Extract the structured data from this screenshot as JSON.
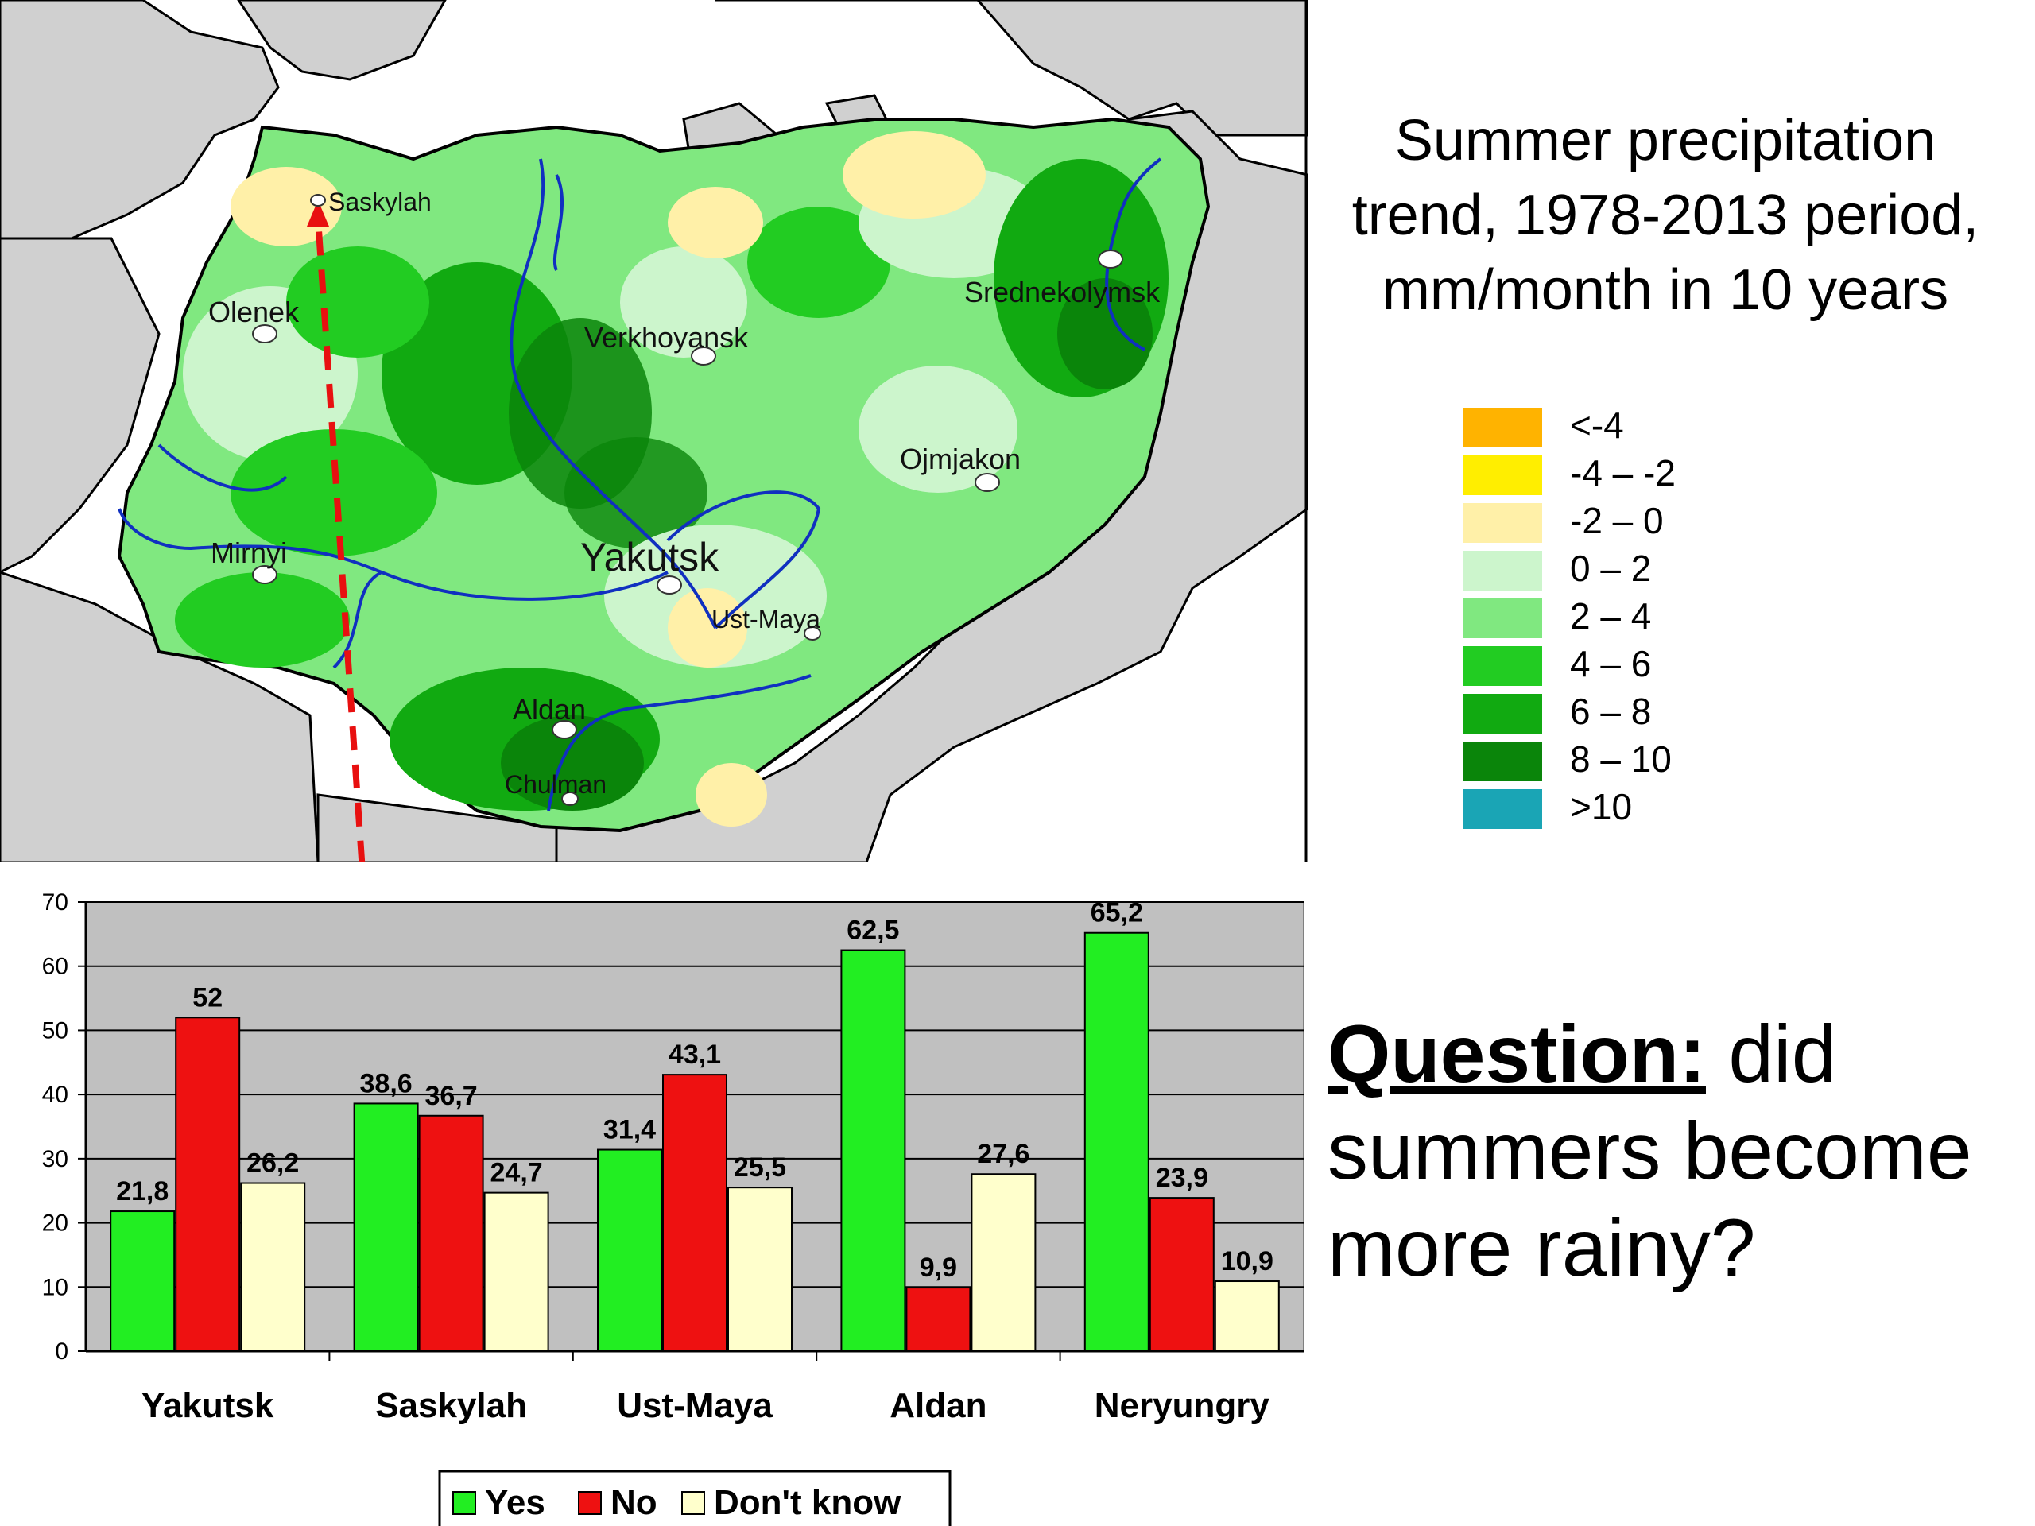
{
  "map": {
    "title_lines": [
      "Summer precipitation",
      "trend, 1978-2013 period,",
      "mm/month in 10 years"
    ],
    "cities": {
      "saskylah": "Saskylah",
      "olenek": "Olenek",
      "verkhoyansk": "Verkhoyansk",
      "srednekolymsk": "Srednekolymsk",
      "ojmjakon": "Ojmjakon",
      "mirnyi": "Mirnyi",
      "yakutsk": "Yakutsk",
      "ust_maya": "Ust-Maya",
      "aldan": "Aldan",
      "chulman": "Chulman"
    },
    "legend": [
      {
        "label": "<-4",
        "color": "#FFB300"
      },
      {
        "label": "-4 – -2",
        "color": "#FFEE00"
      },
      {
        "label": "-2 – 0",
        "color": "#FFF0A8"
      },
      {
        "label": "0 – 2",
        "color": "#CCF5CC"
      },
      {
        "label": "2 – 4",
        "color": "#80E880"
      },
      {
        "label": "4 – 6",
        "color": "#22CC22"
      },
      {
        "label": "6 – 8",
        "color": "#11AA11"
      },
      {
        "label": "8 – 10",
        "color": "#0A850A"
      },
      {
        "label": ">10",
        "color": "#1AA5B5"
      }
    ],
    "colors": {
      "land_outside": "#D0D0D0",
      "sea": "#FFFFFF",
      "rivers": "#1030C0",
      "arrow": "#E81010"
    }
  },
  "question": {
    "label": "Question:",
    "text": " did summers become more rainy?"
  },
  "chart_data": {
    "type": "bar",
    "categories": [
      "Yakutsk",
      "Saskylah",
      "Ust-Maya",
      "Aldan",
      "Neryungry"
    ],
    "series": [
      {
        "name": "Yes",
        "color": "#22EE22",
        "values": [
          21.8,
          38.6,
          31.4,
          62.5,
          65.2
        ],
        "labels": [
          "21,8",
          "38,6",
          "31,4",
          "62,5",
          "65,2"
        ]
      },
      {
        "name": "No",
        "color": "#EE1111",
        "values": [
          52,
          36.7,
          43.1,
          9.9,
          23.9
        ],
        "labels": [
          "52",
          "36,7",
          "43,1",
          "9,9",
          "23,9"
        ]
      },
      {
        "name": "Don't know",
        "color": "#FFFFCC",
        "values": [
          26.2,
          24.7,
          25.5,
          27.6,
          10.9
        ],
        "labels": [
          "26,2",
          "24,7",
          "25,5",
          "27,6",
          "10,9"
        ]
      }
    ],
    "ylim": [
      0,
      70
    ],
    "yticks": [
      0,
      10,
      20,
      30,
      40,
      50,
      60,
      70
    ],
    "grid": true,
    "legend_position": "bottom-center",
    "plot_background": "#C0C0C0",
    "xlabel": "",
    "ylabel": ""
  }
}
